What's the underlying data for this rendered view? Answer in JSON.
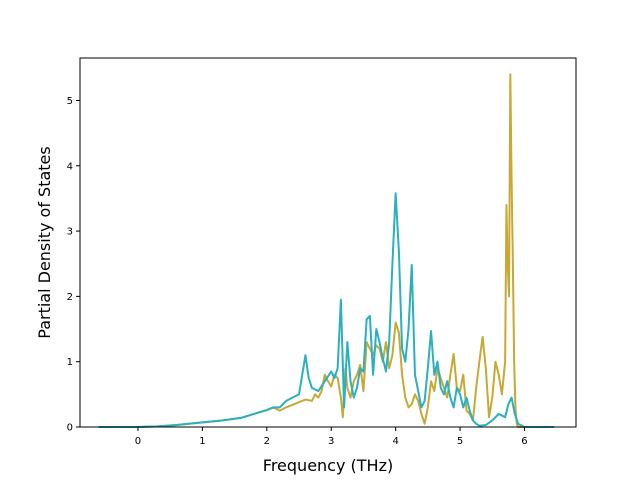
{
  "chart_data": {
    "type": "line",
    "title": "",
    "xlabel": "Frequency (THz)",
    "ylabel": "Partial Density of States",
    "xlim": [
      -0.9,
      6.8
    ],
    "ylim": [
      0,
      5.65
    ],
    "xticks": [
      "0",
      "1",
      "2",
      "3",
      "4",
      "5",
      "6"
    ],
    "yticks": [
      "0",
      "1",
      "2",
      "3",
      "4",
      "5"
    ],
    "grid": false,
    "legend": "none",
    "series": [
      {
        "color": "#c8a934",
        "x": [
          -0.6,
          0.0,
          0.3,
          0.6,
          1.0,
          1.3,
          1.6,
          1.8,
          2.0,
          2.1,
          2.2,
          2.3,
          2.4,
          2.5,
          2.6,
          2.7,
          2.75,
          2.8,
          2.85,
          2.9,
          2.95,
          3.0,
          3.05,
          3.1,
          3.15,
          3.18,
          3.2,
          3.22,
          3.25,
          3.3,
          3.35,
          3.4,
          3.45,
          3.5,
          3.55,
          3.6,
          3.65,
          3.7,
          3.75,
          3.8,
          3.85,
          3.9,
          3.95,
          4.0,
          4.05,
          4.1,
          4.15,
          4.2,
          4.25,
          4.3,
          4.35,
          4.4,
          4.45,
          4.5,
          4.55,
          4.6,
          4.65,
          4.7,
          4.75,
          4.8,
          4.85,
          4.9,
          4.95,
          5.0,
          5.05,
          5.1,
          5.15,
          5.2,
          5.25,
          5.3,
          5.35,
          5.4,
          5.45,
          5.5,
          5.55,
          5.6,
          5.65,
          5.7,
          5.72,
          5.74,
          5.76,
          5.78,
          5.8,
          5.82,
          5.84,
          5.86,
          5.88,
          5.9,
          6.0,
          6.45
        ],
        "y": [
          0.0,
          0.0,
          0.01,
          0.03,
          0.07,
          0.1,
          0.14,
          0.2,
          0.26,
          0.3,
          0.25,
          0.3,
          0.34,
          0.38,
          0.42,
          0.4,
          0.5,
          0.45,
          0.55,
          0.8,
          0.7,
          0.62,
          0.8,
          0.75,
          0.45,
          0.15,
          0.5,
          0.9,
          0.6,
          0.45,
          0.7,
          0.8,
          0.95,
          0.55,
          1.3,
          1.2,
          1.1,
          1.25,
          1.2,
          1.0,
          1.3,
          0.9,
          1.1,
          1.6,
          1.45,
          0.8,
          0.45,
          0.3,
          0.35,
          0.5,
          0.4,
          0.2,
          0.05,
          0.3,
          0.7,
          0.55,
          0.9,
          0.75,
          0.6,
          0.45,
          0.8,
          1.12,
          0.6,
          0.55,
          0.8,
          0.25,
          0.2,
          0.1,
          0.6,
          1.0,
          1.38,
          0.9,
          0.15,
          0.45,
          1.0,
          0.8,
          0.5,
          1.0,
          3.4,
          2.5,
          2.0,
          5.4,
          3.8,
          2.5,
          1.0,
          0.3,
          0.05,
          0.0,
          0.0,
          0.0
        ]
      },
      {
        "color": "#2ab0c0",
        "x": [
          -0.6,
          0.0,
          0.3,
          0.6,
          1.0,
          1.3,
          1.6,
          1.8,
          2.0,
          2.1,
          2.2,
          2.3,
          2.4,
          2.5,
          2.55,
          2.6,
          2.65,
          2.7,
          2.8,
          2.9,
          3.0,
          3.05,
          3.1,
          3.15,
          3.2,
          3.25,
          3.3,
          3.35,
          3.4,
          3.45,
          3.5,
          3.55,
          3.6,
          3.65,
          3.7,
          3.75,
          3.8,
          3.85,
          3.9,
          3.95,
          4.0,
          4.05,
          4.1,
          4.15,
          4.2,
          4.25,
          4.3,
          4.35,
          4.4,
          4.45,
          4.5,
          4.55,
          4.6,
          4.65,
          4.7,
          4.75,
          4.8,
          4.85,
          4.9,
          4.95,
          5.0,
          5.05,
          5.1,
          5.15,
          5.2,
          5.25,
          5.3,
          5.4,
          5.5,
          5.6,
          5.7,
          5.75,
          5.8,
          5.85,
          5.9,
          6.0,
          6.45
        ],
        "y": [
          0.0,
          0.0,
          0.01,
          0.03,
          0.07,
          0.1,
          0.14,
          0.2,
          0.26,
          0.3,
          0.3,
          0.4,
          0.45,
          0.5,
          0.8,
          1.1,
          0.75,
          0.6,
          0.55,
          0.7,
          0.85,
          0.75,
          0.9,
          1.95,
          0.3,
          1.3,
          0.7,
          0.45,
          0.6,
          0.9,
          0.85,
          1.65,
          1.7,
          0.8,
          1.5,
          1.3,
          1.05,
          0.85,
          1.3,
          2.5,
          3.58,
          2.7,
          1.2,
          1.0,
          1.5,
          2.48,
          0.8,
          0.55,
          0.3,
          0.4,
          0.9,
          1.47,
          0.8,
          1.0,
          0.6,
          0.5,
          0.7,
          0.45,
          0.3,
          0.6,
          0.5,
          0.3,
          0.45,
          0.25,
          0.1,
          0.05,
          0.02,
          0.03,
          0.1,
          0.2,
          0.15,
          0.35,
          0.45,
          0.2,
          0.05,
          0.0,
          0.0
        ]
      }
    ]
  }
}
